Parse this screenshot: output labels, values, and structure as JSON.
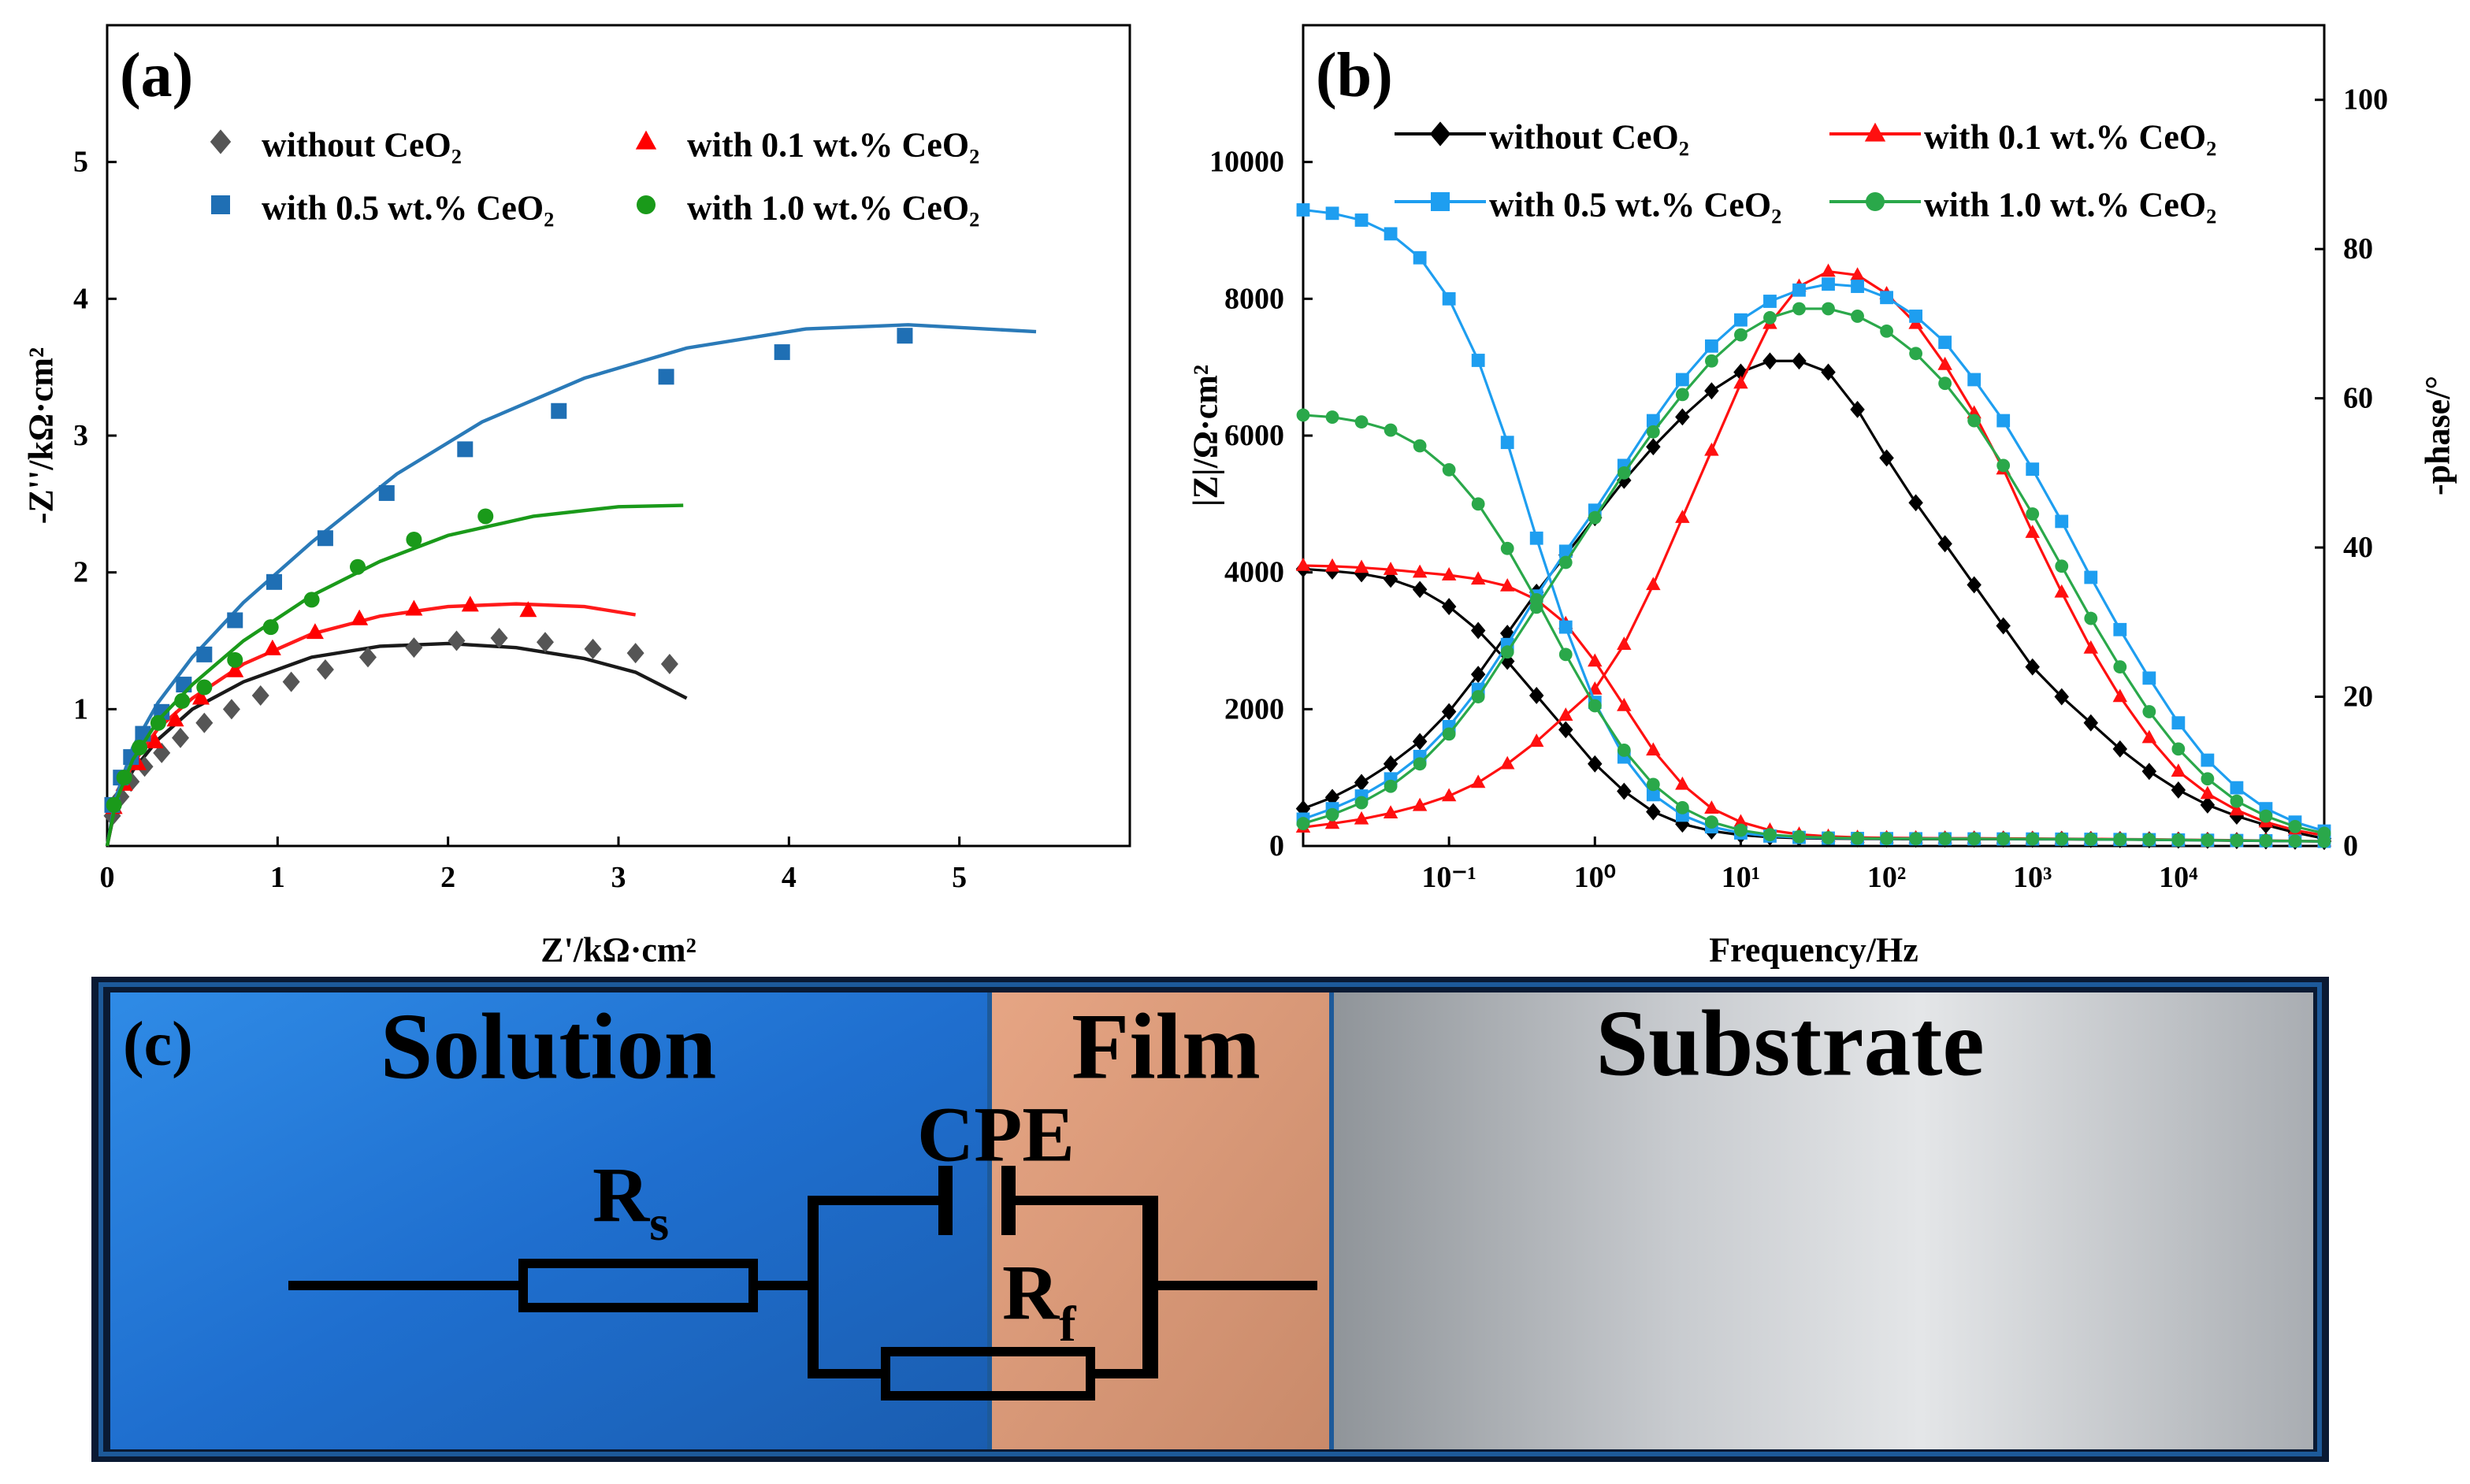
{
  "chart_data": [
    {
      "type": "scatter",
      "panel_label": "(a)",
      "x_label": "Z'/kΩ·cm²",
      "y_label": "-Z''/kΩ·cm²",
      "xlim": [
        0,
        6
      ],
      "ylim": [
        0,
        6
      ],
      "xticks": [
        0,
        1,
        2,
        3,
        4,
        5
      ],
      "yticks": [
        1,
        2,
        3,
        4,
        5
      ],
      "series": [
        {
          "name": "without CeO₂",
          "color": "#555555",
          "fit_color": "#1a1a1a",
          "marker": "diamond",
          "x": [
            0.03,
            0.08,
            0.14,
            0.22,
            0.32,
            0.43,
            0.57,
            0.73,
            0.9,
            1.08,
            1.28,
            1.53,
            1.8,
            2.05,
            2.3,
            2.57,
            2.85,
            3.1,
            3.3
          ],
          "values": [
            0.22,
            0.36,
            0.47,
            0.58,
            0.68,
            0.79,
            0.9,
            1.0,
            1.1,
            1.2,
            1.29,
            1.38,
            1.45,
            1.5,
            1.52,
            1.49,
            1.44,
            1.41,
            1.33
          ],
          "fit_x": [
            0,
            0.05,
            0.15,
            0.3,
            0.5,
            0.8,
            1.2,
            1.6,
            2.0,
            2.4,
            2.8,
            3.1,
            3.4
          ],
          "fit_values": [
            0,
            0.3,
            0.55,
            0.78,
            1.0,
            1.2,
            1.38,
            1.46,
            1.48,
            1.45,
            1.37,
            1.27,
            1.08
          ]
        },
        {
          "name": "with 0.1 wt.% CeO₂",
          "color": "#ff0000",
          "fit_color": "#ff1a1a",
          "marker": "triangle",
          "x": [
            0.04,
            0.1,
            0.18,
            0.28,
            0.4,
            0.55,
            0.75,
            0.97,
            1.22,
            1.48,
            1.8,
            2.13,
            2.47
          ],
          "values": [
            0.28,
            0.45,
            0.6,
            0.76,
            0.92,
            1.08,
            1.28,
            1.44,
            1.56,
            1.66,
            1.73,
            1.76,
            1.72
          ],
          "fit_x": [
            0,
            0.05,
            0.15,
            0.3,
            0.5,
            0.8,
            1.2,
            1.6,
            2.0,
            2.4,
            2.8,
            3.1
          ],
          "fit_values": [
            0,
            0.33,
            0.6,
            0.86,
            1.08,
            1.33,
            1.55,
            1.68,
            1.75,
            1.77,
            1.75,
            1.69
          ]
        },
        {
          "name": "with 0.5 wt.% CeO₂",
          "color": "#1f6fb4",
          "fit_color": "#2a7ab8",
          "marker": "square",
          "x": [
            0.03,
            0.08,
            0.14,
            0.21,
            0.32,
            0.45,
            0.57,
            0.75,
            0.98,
            1.28,
            1.64,
            2.1,
            2.65,
            3.28,
            3.96,
            4.68
          ],
          "values": [
            0.3,
            0.5,
            0.65,
            0.82,
            0.98,
            1.18,
            1.4,
            1.65,
            1.93,
            2.25,
            2.58,
            2.9,
            3.18,
            3.43,
            3.61,
            3.73
          ],
          "fit_x": [
            0,
            0.05,
            0.15,
            0.3,
            0.5,
            0.8,
            1.2,
            1.7,
            2.2,
            2.8,
            3.4,
            4.1,
            4.7,
            5.45
          ],
          "fit_values": [
            0,
            0.35,
            0.72,
            1.05,
            1.38,
            1.78,
            2.22,
            2.72,
            3.1,
            3.42,
            3.64,
            3.78,
            3.81,
            3.76
          ]
        },
        {
          "name": "with 1.0 wt.% CeO₂",
          "color": "#1a9a1a",
          "fit_color": "#1a9a1a",
          "marker": "circle",
          "x": [
            0.04,
            0.1,
            0.19,
            0.3,
            0.44,
            0.57,
            0.75,
            0.96,
            1.2,
            1.47,
            1.8,
            2.22
          ],
          "values": [
            0.3,
            0.5,
            0.72,
            0.9,
            1.06,
            1.16,
            1.36,
            1.6,
            1.8,
            2.04,
            2.24,
            2.41
          ],
          "fit_x": [
            0,
            0.05,
            0.15,
            0.3,
            0.5,
            0.8,
            1.2,
            1.6,
            2.0,
            2.5,
            3.0,
            3.38
          ],
          "fit_values": [
            0,
            0.32,
            0.63,
            0.92,
            1.18,
            1.5,
            1.83,
            2.08,
            2.27,
            2.41,
            2.48,
            2.49
          ]
        }
      ]
    },
    {
      "type": "bode",
      "panel_label": "(b)",
      "x_label": "Frequency/Hz",
      "y_label": "|Z|/Ω·cm²",
      "y2_label": "-phase/°",
      "x_log": true,
      "xlim": [
        0.01,
        100000
      ],
      "xticks": [
        {
          "value": 0.1,
          "label": "10⁻¹"
        },
        {
          "value": 1,
          "label": "10⁰"
        },
        {
          "value": 10,
          "label": "10¹"
        },
        {
          "value": 100,
          "label": "10²"
        },
        {
          "value": 1000,
          "label": "10³"
        },
        {
          "value": 10000,
          "label": "10⁴"
        }
      ],
      "ylim": [
        0,
        12000
      ],
      "yticks": [
        0,
        2000,
        4000,
        6000,
        8000,
        10000
      ],
      "y2lim": [
        0,
        110
      ],
      "y2ticks": [
        0,
        20,
        40,
        60,
        80,
        100
      ],
      "x": [
        0.01,
        0.01585,
        0.02512,
        0.03981,
        0.0631,
        0.1,
        0.1585,
        0.2512,
        0.3981,
        0.631,
        1,
        1.585,
        2.512,
        3.981,
        6.31,
        10,
        15.85,
        25.12,
        39.81,
        63.1,
        100,
        158.5,
        251.2,
        398.1,
        631,
        1000,
        1585,
        2512,
        3981,
        6310,
        10000,
        15850,
        25120,
        39810,
        63100,
        100000
      ],
      "series": [
        {
          "name": "without CeO₂",
          "color": "#000000",
          "marker": "diamond",
          "values": [
            4050,
            4020,
            3980,
            3900,
            3750,
            3500,
            3150,
            2700,
            2200,
            1700,
            1200,
            800,
            500,
            320,
            220,
            160,
            130,
            115,
            108,
            104,
            102,
            100,
            100,
            100,
            100,
            98,
            97,
            95,
            93,
            90,
            86,
            82,
            78,
            74,
            70,
            66
          ],
          "phase_values": [
            5,
            6.5,
            8.5,
            11,
            14,
            18,
            23,
            28.5,
            34,
            39,
            44,
            49,
            53.5,
            57.5,
            61,
            63.5,
            65,
            65,
            63.5,
            58.5,
            52,
            46,
            40.5,
            35,
            29.5,
            24,
            20,
            16.5,
            13,
            10,
            7.5,
            5.5,
            4,
            2.8,
            1.8,
            1
          ]
        },
        {
          "name": "with 0.1 wt.% CeO₂",
          "color": "#ff1010",
          "marker": "triangle",
          "values": [
            4100,
            4090,
            4070,
            4040,
            4000,
            3960,
            3900,
            3800,
            3600,
            3250,
            2700,
            2050,
            1400,
            900,
            550,
            350,
            230,
            170,
            140,
            125,
            118,
            115,
            113,
            112,
            110,
            108,
            106,
            103,
            100,
            96,
            92,
            88,
            84,
            80,
            75,
            70
          ],
          "phase_values": [
            2.5,
            3,
            3.6,
            4.4,
            5.4,
            6.7,
            8.5,
            11,
            14,
            17.5,
            21,
            27,
            35,
            44,
            53,
            62,
            70,
            75,
            77,
            76.5,
            74,
            70,
            64.5,
            58,
            50.5,
            42,
            34,
            26.5,
            20,
            14.5,
            10,
            7,
            4.8,
            3.2,
            2.1,
            1.4
          ]
        },
        {
          "name": "with 0.5 wt.% CeO₂",
          "color": "#1e9ef0",
          "marker": "square",
          "values": [
            9300,
            9250,
            9150,
            8950,
            8600,
            8000,
            7100,
            5900,
            4500,
            3200,
            2100,
            1300,
            750,
            450,
            280,
            190,
            145,
            125,
            115,
            110,
            108,
            106,
            105,
            104,
            103,
            102,
            100,
            98,
            95,
            92,
            88,
            84,
            80,
            76,
            72,
            68
          ],
          "phase_values": [
            3.6,
            5,
            6.7,
            9,
            12,
            16,
            21,
            27,
            33.5,
            39.5,
            45,
            51,
            57,
            62.5,
            67,
            70.5,
            73,
            74.5,
            75.3,
            75,
            73.5,
            71,
            67.5,
            62.5,
            57,
            50.5,
            43.5,
            36,
            29,
            22.5,
            16.5,
            11.5,
            7.8,
            5,
            3.2,
            2
          ]
        },
        {
          "name": "with 1.0 wt.% CeO₂",
          "color": "#2aa84a",
          "marker": "circle",
          "values": [
            6300,
            6270,
            6200,
            6080,
            5850,
            5500,
            5000,
            4350,
            3600,
            2800,
            2050,
            1400,
            900,
            560,
            350,
            230,
            165,
            135,
            120,
            112,
            108,
            106,
            105,
            104,
            103,
            102,
            100,
            98,
            95,
            92,
            88,
            84,
            80,
            76,
            72,
            68
          ],
          "phase_values": [
            3,
            4.2,
            5.8,
            8,
            11,
            15,
            20,
            26,
            32,
            38,
            44,
            50,
            55.5,
            60.5,
            65,
            68.5,
            70.8,
            72,
            72,
            71,
            69,
            66,
            62,
            57,
            51,
            44.5,
            37.5,
            30.5,
            24,
            18,
            13,
            9,
            6,
            4,
            2.6,
            1.7
          ]
        }
      ]
    }
  ],
  "diagram": {
    "panel_label": "(c)",
    "regions": [
      "Solution",
      "Film",
      "Substrate"
    ],
    "components": {
      "cpe": "CPE",
      "rs": {
        "symbol": "R",
        "subscript": "s"
      },
      "rf": {
        "symbol": "R",
        "subscript": "f"
      }
    }
  }
}
